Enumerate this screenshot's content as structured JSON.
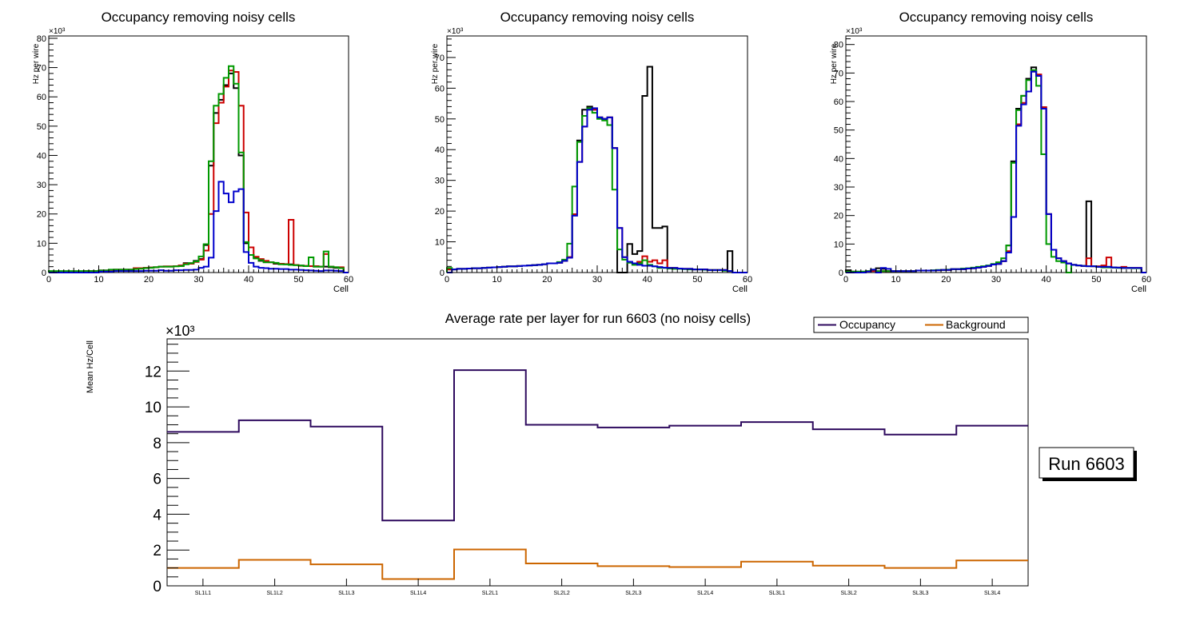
{
  "chart_data": [
    {
      "type": "line",
      "id": "panel1",
      "title": "Occupancy removing noisy cells",
      "xlabel": "Cell",
      "ylabel": "Hz per wire",
      "yexponent": "×10³",
      "xlim": [
        0,
        60
      ],
      "ylim": [
        0,
        80.8
      ],
      "xticks": [
        "0",
        "10",
        "20",
        "30",
        "40",
        "50",
        "60"
      ],
      "yticks": [
        "0",
        "10",
        "20",
        "30",
        "40",
        "50",
        "60",
        "70",
        "80"
      ],
      "series": [
        {
          "name": "black",
          "color": "#000000",
          "values": [
            0.3,
            0.3,
            0.3,
            0.3,
            0.3,
            0.3,
            0.3,
            0.5,
            0.5,
            0.5,
            0.7,
            0.7,
            0.9,
            1,
            1,
            1,
            1,
            1.5,
            1.5,
            1.6,
            1.7,
            1.8,
            2,
            2,
            2,
            2.2,
            2.4,
            3.2,
            3.2,
            4,
            4.6,
            9.4,
            36.5,
            54.5,
            59,
            64,
            68,
            63,
            40,
            10,
            6,
            5,
            4,
            3.5,
            3.5,
            3,
            3,
            2.8,
            2.8,
            2.6,
            2.4,
            2.2,
            2.2,
            2,
            2,
            2,
            1.8,
            1.6,
            1.6,
            0
          ]
        },
        {
          "name": "red",
          "color": "#cc0000",
          "values": [
            0.3,
            0.3,
            0.3,
            0.3,
            0.3,
            0.3,
            0.3,
            0.5,
            0.5,
            0.5,
            0.7,
            0.7,
            0.9,
            1,
            1,
            1,
            1,
            1.5,
            1.5,
            1.6,
            1.7,
            1.8,
            2,
            2.1,
            2.1,
            2.2,
            2.4,
            3,
            3,
            3.6,
            4.4,
            7.5,
            20,
            51,
            58,
            63.5,
            69,
            68.5,
            57,
            20.5,
            8.6,
            5.4,
            4.6,
            4,
            3.5,
            3.2,
            3,
            2.9,
            18,
            2.6,
            2.3,
            2.3,
            2.2,
            2.2,
            2,
            6.3,
            2,
            1.8,
            1.8,
            0
          ]
        },
        {
          "name": "green",
          "color": "#009900",
          "values": [
            0.5,
            0.5,
            0.5,
            0.5,
            0.5,
            0.5,
            0.5,
            0.5,
            0.5,
            0.5,
            0.7,
            0.7,
            1,
            1,
            1,
            1,
            1,
            1.2,
            1.3,
            1.5,
            1.6,
            1.8,
            2,
            2,
            2,
            2.1,
            2.2,
            2.8,
            3.2,
            3.8,
            5.5,
            9.7,
            38,
            57,
            61,
            66.5,
            70.5,
            64.5,
            41,
            10.4,
            6,
            4.8,
            4.2,
            3.5,
            3.5,
            3.3,
            2.8,
            2.8,
            2.6,
            2.5,
            2.4,
            2.2,
            5.2,
            2,
            2,
            7.2,
            2,
            1.8,
            1.5,
            0
          ]
        },
        {
          "name": "blue",
          "color": "#0000cc",
          "values": [
            0,
            0,
            0,
            0,
            0,
            0,
            0,
            0,
            0,
            0,
            0.3,
            0.3,
            0.3,
            0.5,
            0.5,
            0.5,
            0.5,
            0.5,
            0.5,
            0.6,
            0.6,
            0.6,
            0.8,
            0.6,
            0.6,
            0.8,
            0.8,
            0.9,
            0.9,
            1,
            1.6,
            2,
            5.1,
            21,
            31,
            27,
            24,
            27.7,
            28.5,
            7,
            3.3,
            2,
            1.6,
            1.5,
            1.3,
            1.3,
            1.2,
            1.2,
            1,
            1,
            0.9,
            0.8,
            0.7,
            0.6,
            0.5,
            0.7,
            0.7,
            0.6,
            0.5,
            0
          ]
        }
      ]
    },
    {
      "type": "line",
      "id": "panel2",
      "title": "Occupancy removing noisy cells",
      "xlabel": "Cell",
      "ylabel": "Hz per wire",
      "yexponent": "×10³",
      "xlim": [
        0,
        60
      ],
      "ylim": [
        0,
        77
      ],
      "xticks": [
        "0",
        "10",
        "20",
        "30",
        "40",
        "50",
        "60"
      ],
      "yticks": [
        "0",
        "10",
        "20",
        "30",
        "40",
        "50",
        "60",
        "70"
      ],
      "series": [
        {
          "name": "black",
          "color": "#000000",
          "values": [
            1,
            1,
            1.2,
            1.2,
            1.3,
            1.4,
            1.4,
            1.5,
            1.6,
            1.7,
            1.8,
            1.9,
            2,
            2,
            2.1,
            2.2,
            2.3,
            2.4,
            2.5,
            2.7,
            3,
            3,
            3.2,
            3.8,
            5,
            19,
            43,
            53,
            54,
            53,
            50.5,
            50,
            50.5,
            40.5,
            0,
            0,
            9.3,
            6,
            7,
            57.5,
            67,
            14.5,
            14.5,
            15,
            1.5,
            1.5,
            1.3,
            1.2,
            1.2,
            1,
            1,
            1,
            0.8,
            0.8,
            0.8,
            0.8,
            7,
            0,
            0,
            0
          ]
        },
        {
          "name": "red",
          "color": "#cc0000",
          "values": [
            1,
            1,
            1.2,
            1.2,
            1.3,
            1.4,
            1.4,
            1.5,
            1.6,
            1.7,
            1.8,
            1.9,
            2,
            2,
            2.1,
            2.2,
            2.3,
            2.4,
            2.5,
            2.7,
            3,
            3,
            3.2,
            3.8,
            5,
            19,
            36,
            47.5,
            53,
            53,
            50.5,
            50,
            50.5,
            40.5,
            14.5,
            5,
            3.5,
            3,
            3.5,
            5.3,
            3.5,
            4,
            3,
            4,
            1.5,
            1.5,
            1.3,
            1.2,
            1.2,
            1,
            1,
            1,
            0.8,
            0.8,
            0.8,
            0.8,
            0.5,
            0,
            0,
            0
          ]
        },
        {
          "name": "green",
          "color": "#009900",
          "values": [
            1.5,
            1,
            1.2,
            1.2,
            1.3,
            1.4,
            1.4,
            1.5,
            1.6,
            1.7,
            1.8,
            1.9,
            2,
            2,
            2.1,
            2.2,
            2.3,
            2.4,
            2.5,
            2.7,
            3,
            3,
            3.4,
            4.2,
            9.4,
            28,
            42.5,
            51,
            53.5,
            52,
            50,
            49.5,
            48,
            27,
            7.5,
            4.2,
            3.2,
            2.5,
            3,
            4,
            2.5,
            2,
            1.5,
            1.5,
            1.3,
            1.2,
            1.2,
            1.1,
            1,
            1,
            1,
            0.9,
            0.8,
            0.8,
            0.8,
            0.6,
            0.5,
            0,
            0,
            0
          ]
        },
        {
          "name": "blue",
          "color": "#0000cc",
          "values": [
            0,
            1,
            1.2,
            1.2,
            1.3,
            1.4,
            1.4,
            1.5,
            1.6,
            1.7,
            1.8,
            1.9,
            2,
            2,
            2.1,
            2.2,
            2.3,
            2.4,
            2.5,
            2.7,
            3,
            3,
            3.2,
            3.8,
            4.8,
            18.5,
            36,
            47.5,
            53,
            53.5,
            50.5,
            50,
            50.5,
            40.5,
            14.5,
            5,
            3.5,
            3,
            2.5,
            2.2,
            2.2,
            2,
            1.8,
            1.6,
            1.5,
            1.5,
            1.3,
            1.2,
            1.2,
            1,
            1,
            1,
            0.8,
            0.8,
            0.8,
            0.8,
            0.5,
            0,
            0,
            0
          ]
        }
      ]
    },
    {
      "type": "line",
      "id": "panel3",
      "title": "Occupancy removing noisy cells",
      "xlabel": "Cell",
      "ylabel": "Hz per wire",
      "yexponent": "×10³",
      "xlim": [
        0,
        60
      ],
      "ylim": [
        0,
        83
      ],
      "xticks": [
        "0",
        "10",
        "20",
        "30",
        "40",
        "50",
        "60"
      ],
      "yticks": [
        "0",
        "10",
        "20",
        "30",
        "40",
        "50",
        "60",
        "70",
        "80"
      ],
      "series": [
        {
          "name": "black",
          "color": "#000000",
          "values": [
            0.8,
            0.3,
            0.3,
            0.3,
            0.5,
            0.8,
            1.5,
            1.3,
            0.5,
            0.5,
            0.5,
            0.5,
            0.5,
            0.5,
            0.7,
            0.7,
            0.7,
            0.7,
            0.8,
            0.9,
            0.9,
            1.2,
            1.2,
            1.2,
            1.4,
            1.5,
            1.7,
            2,
            2.3,
            2.8,
            3,
            4,
            9.5,
            39,
            57.5,
            62,
            68,
            72,
            69,
            58,
            20.5,
            8,
            5,
            4,
            3.2,
            2.7,
            2.5,
            2.3,
            25,
            2.2,
            2,
            2,
            2,
            1.8,
            1.7,
            1.6,
            1.6,
            1.6,
            1.6,
            0
          ]
        },
        {
          "name": "red",
          "color": "#cc0000",
          "values": [
            0.3,
            0.3,
            0,
            0,
            0.3,
            0.5,
            0.5,
            0.5,
            0.5,
            0.5,
            0.5,
            0.5,
            0.5,
            0.5,
            0.7,
            0.7,
            0.7,
            0.7,
            0.8,
            0.9,
            0.9,
            1.2,
            1.2,
            1.2,
            1.4,
            1.5,
            1.7,
            2,
            2.3,
            2.8,
            3,
            4,
            7.5,
            19.5,
            52,
            59.5,
            63.5,
            70.5,
            69.5,
            58,
            20.5,
            8,
            5,
            4,
            3.2,
            2.7,
            2.5,
            2.3,
            5,
            2.2,
            2.2,
            2.5,
            5.3,
            1.8,
            1.7,
            2,
            1.6,
            1.6,
            1.6,
            0
          ]
        },
        {
          "name": "green",
          "color": "#009900",
          "values": [
            0.3,
            0.3,
            0.3,
            0.3,
            0.5,
            1,
            0.5,
            0.5,
            0.5,
            0.5,
            0.5,
            0.5,
            0.5,
            0.5,
            0.7,
            0.7,
            0.7,
            0.8,
            0.9,
            0.9,
            1,
            1.2,
            1.2,
            1.4,
            1.5,
            1.7,
            2,
            2.2,
            2.5,
            3,
            3.6,
            5,
            9.5,
            38.5,
            57,
            62,
            67.5,
            71,
            65.5,
            41.5,
            10,
            5.5,
            4,
            3.5,
            0,
            2.7,
            2.5,
            2.3,
            2.2,
            2.2,
            2,
            1.8,
            1.8,
            1.7,
            1.6,
            1.6,
            1.6,
            1.5,
            1.5,
            0
          ]
        },
        {
          "name": "blue",
          "color": "#0000cc",
          "values": [
            0,
            0,
            0,
            0,
            0.3,
            1,
            0,
            1.6,
            1.3,
            0.5,
            0.5,
            0.5,
            0.5,
            0.5,
            0.7,
            0.7,
            0.7,
            0.7,
            0.8,
            0.9,
            0.9,
            1.2,
            1.2,
            1.2,
            1.4,
            1.5,
            1.7,
            2,
            2.3,
            2.8,
            3,
            4,
            7,
            19.5,
            51.5,
            59,
            63.5,
            70.5,
            69,
            57.5,
            20.5,
            8,
            5,
            4,
            3.2,
            2.7,
            2.5,
            2.3,
            2.2,
            2.2,
            2,
            2,
            2,
            1.8,
            1.7,
            1.6,
            1.6,
            1.6,
            1.6,
            0
          ]
        }
      ]
    },
    {
      "type": "line",
      "id": "summary",
      "title": "Average rate per layer for run 6603 (no noisy cells)",
      "xlabel": "",
      "ylabel": "Mean Hz/Cell",
      "yexponent": "×10³",
      "ylim": [
        0,
        13.8
      ],
      "yticks": [
        "0",
        "2",
        "4",
        "6",
        "8",
        "10",
        "12"
      ],
      "categories": [
        "SL1L1",
        "SL1L2",
        "SL1L3",
        "SL1L4",
        "SL2L1",
        "SL2L2",
        "SL2L3",
        "SL2L4",
        "SL3L1",
        "SL3L2",
        "SL3L3",
        "SL3L4"
      ],
      "legend": {
        "placement": "top-right",
        "entries": [
          "Occupancy",
          "Background"
        ]
      },
      "series": [
        {
          "name": "Occupancy",
          "color": "#2e0a5e",
          "values": [
            8.6,
            9.25,
            8.9,
            3.65,
            12.05,
            9.0,
            8.85,
            8.95,
            9.15,
            8.75,
            8.45,
            8.95
          ]
        },
        {
          "name": "Background",
          "color": "#cc6600",
          "values": [
            1.0,
            1.45,
            1.2,
            0.38,
            2.03,
            1.25,
            1.1,
            1.05,
            1.35,
            1.13,
            1.0,
            1.42
          ]
        }
      ],
      "annotation": "Run 6603"
    }
  ]
}
